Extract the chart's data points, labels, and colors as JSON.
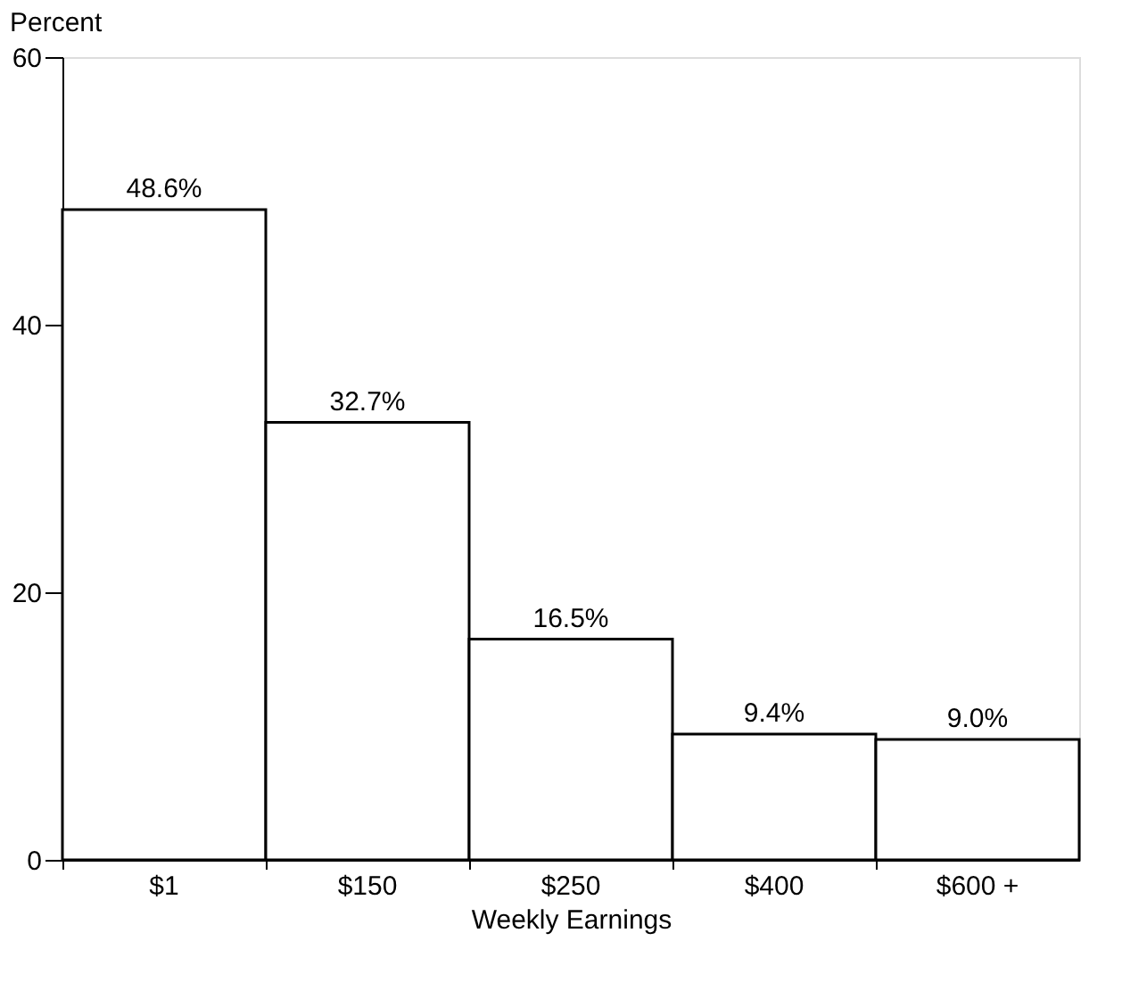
{
  "chart_data": {
    "type": "bar",
    "xlabel": "Weekly Earnings",
    "ylabel": "Percent",
    "categories": [
      "$1",
      "$150",
      "$250",
      "$400",
      "$600 +"
    ],
    "values": [
      48.6,
      32.7,
      16.5,
      9.4,
      9.0
    ],
    "value_labels": [
      "48.6%",
      "32.7%",
      "16.5%",
      "9.4%",
      "9.0%"
    ],
    "color": "#ffffff",
    "ylim": [
      0,
      60
    ],
    "yticks": [
      0,
      20,
      40,
      60
    ],
    "grid": false
  }
}
